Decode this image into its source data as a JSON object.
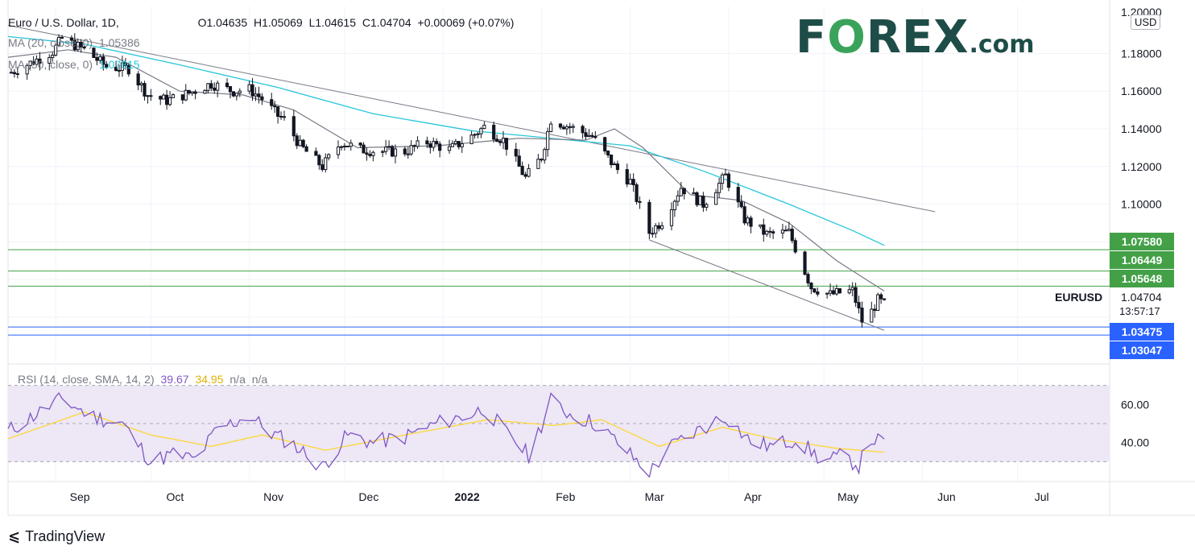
{
  "header": {
    "symbol": "Euro / U.S. Dollar, 1D,",
    "open": "O1.04635",
    "high": "H1.05069",
    "low": "L1.04615",
    "close": "C1.04704",
    "change": "+0.00069 (+0.07%)",
    "ma20_label": "MA (20, close, 0)",
    "ma20_value": "1.05386",
    "ma50_label": "MA (50, close, 0)",
    "ma50_value": "1.07815",
    "rsi_label": "RSI (14, close, SMA, 14, 2)",
    "rsi_value": "39.67",
    "rsi_sma_value": "34.95",
    "rsi_na1": "n/a",
    "rsi_na2": "n/a"
  },
  "logo": {
    "text_pre": "F",
    "text_o": "O",
    "text_post": "REX",
    "suffix": ".com"
  },
  "currency_button": "USD",
  "last_price": {
    "symbol": "EURUSD",
    "price": "1.04704",
    "countdown": "13:57:17"
  },
  "levels": [
    {
      "label": "1.07580",
      "value": 1.0758,
      "color": "#43a047"
    },
    {
      "label": "1.06449",
      "value": 1.06449,
      "color": "#43a047"
    },
    {
      "label": "1.05648",
      "value": 1.05648,
      "color": "#43a047"
    },
    {
      "label": "1.03475",
      "value": 1.03475,
      "color": "#2962ff"
    },
    {
      "label": "1.03047",
      "value": 1.03047,
      "color": "#2962ff"
    }
  ],
  "brand": {
    "name": "TradingView"
  },
  "colors": {
    "ma20": "#787b86",
    "ma50": "#26c6da",
    "rsi": "#7e57c2",
    "rsi_sma": "#fdd835",
    "candle": "#131722",
    "trend": "#787b86",
    "rsi_band": "#ede7f6"
  },
  "chart_data": {
    "type": "candlestick",
    "price_axis": {
      "ticks": [
        1.18,
        1.16,
        1.14,
        1.12,
        1.1,
        1.08,
        1.06,
        1.04
      ],
      "tick_labels": [
        "1.18000",
        "1.16000",
        "1.14000",
        "1.12000",
        "1.10000",
        "",
        "",
        ""
      ],
      "top_partial_label": "1.20000",
      "range": [
        1.016,
        1.205
      ]
    },
    "time_axis": {
      "labels": [
        "Sep",
        "Oct",
        "Nov",
        "Dec",
        "2022",
        "Feb",
        "Mar",
        "Apr",
        "May",
        "Jun",
        "Jul"
      ],
      "dates": [
        "2021-09-01",
        "2021-10-01",
        "2021-11-01",
        "2021-12-01",
        "2022-01-01",
        "2022-02-01",
        "2022-03-01",
        "2022-04-01",
        "2022-05-01",
        "2022-06-01",
        "2022-07-01"
      ],
      "range": [
        "2021-08-17",
        "2022-07-30"
      ]
    },
    "close_path": [
      [
        "2021-08-18",
        1.17
      ],
      [
        "2021-08-24",
        1.175
      ],
      [
        "2021-08-31",
        1.181
      ],
      [
        "2021-09-03",
        1.188
      ],
      [
        "2021-09-10",
        1.182
      ],
      [
        "2021-09-17",
        1.173
      ],
      [
        "2021-09-24",
        1.172
      ],
      [
        "2021-09-30",
        1.158
      ],
      [
        "2021-10-06",
        1.155
      ],
      [
        "2021-10-13",
        1.159
      ],
      [
        "2021-10-20",
        1.164
      ],
      [
        "2021-10-27",
        1.16
      ],
      [
        "2021-11-01",
        1.161
      ],
      [
        "2021-11-05",
        1.156
      ],
      [
        "2021-11-10",
        1.147
      ],
      [
        "2021-11-12",
        1.145
      ],
      [
        "2021-11-17",
        1.131
      ],
      [
        "2021-11-24",
        1.12
      ],
      [
        "2021-11-30",
        1.133
      ],
      [
        "2021-12-06",
        1.129
      ],
      [
        "2021-12-13",
        1.128
      ],
      [
        "2021-12-20",
        1.128
      ],
      [
        "2021-12-27",
        1.133
      ],
      [
        "2022-01-03",
        1.129
      ],
      [
        "2022-01-10",
        1.136
      ],
      [
        "2022-01-14",
        1.141
      ],
      [
        "2022-01-20",
        1.134
      ],
      [
        "2022-01-27",
        1.114
      ],
      [
        "2022-02-01",
        1.125
      ],
      [
        "2022-02-04",
        1.145
      ],
      [
        "2022-02-10",
        1.141
      ],
      [
        "2022-02-17",
        1.136
      ],
      [
        "2022-02-24",
        1.12
      ],
      [
        "2022-03-01",
        1.112
      ],
      [
        "2022-03-07",
        1.085
      ],
      [
        "2022-03-11",
        1.091
      ],
      [
        "2022-03-17",
        1.109
      ],
      [
        "2022-03-24",
        1.1
      ],
      [
        "2022-03-31",
        1.115
      ],
      [
        "2022-04-06",
        1.092
      ],
      [
        "2022-04-13",
        1.084
      ],
      [
        "2022-04-20",
        1.085
      ],
      [
        "2022-04-27",
        1.056
      ],
      [
        "2022-05-03",
        1.052
      ],
      [
        "2022-05-06",
        1.053
      ],
      [
        "2022-05-10",
        1.054
      ],
      [
        "2022-05-13",
        1.038
      ],
      [
        "2022-05-16",
        1.043
      ],
      [
        "2022-05-18",
        1.049
      ],
      [
        "2022-05-20",
        1.047
      ]
    ],
    "ma20_path": [
      [
        "2021-08-17",
        1.178
      ],
      [
        "2021-09-05",
        1.182
      ],
      [
        "2021-09-20",
        1.178
      ],
      [
        "2021-10-10",
        1.16
      ],
      [
        "2021-10-30",
        1.158
      ],
      [
        "2021-11-15",
        1.15
      ],
      [
        "2021-12-05",
        1.13
      ],
      [
        "2021-12-30",
        1.131
      ],
      [
        "2022-01-25",
        1.135
      ],
      [
        "2022-02-15",
        1.134
      ],
      [
        "2022-02-24",
        1.14
      ],
      [
        "2022-03-05",
        1.13
      ],
      [
        "2022-03-20",
        1.105
      ],
      [
        "2022-04-05",
        1.102
      ],
      [
        "2022-04-20",
        1.09
      ],
      [
        "2022-05-05",
        1.07
      ],
      [
        "2022-05-20",
        1.05386
      ]
    ],
    "ma50_path": [
      [
        "2021-08-17",
        1.189
      ],
      [
        "2021-09-10",
        1.185
      ],
      [
        "2021-10-10",
        1.174
      ],
      [
        "2021-11-10",
        1.162
      ],
      [
        "2021-12-10",
        1.148
      ],
      [
        "2022-01-10",
        1.139
      ],
      [
        "2022-02-10",
        1.134
      ],
      [
        "2022-03-01",
        1.131
      ],
      [
        "2022-03-25",
        1.117
      ],
      [
        "2022-04-20",
        1.1
      ],
      [
        "2022-05-10",
        1.086
      ],
      [
        "2022-05-20",
        1.07815
      ]
    ],
    "trendlines": [
      {
        "from": [
          "2021-08-17",
          1.195
        ],
        "to": [
          "2022-06-05",
          1.096
        ]
      },
      {
        "from": [
          "2022-03-07",
          1.081
        ],
        "to": [
          "2022-05-20",
          1.033
        ]
      }
    ],
    "rsi_axis": {
      "ticks": [
        60,
        40
      ],
      "tick_labels": [
        "60.00",
        "40.00"
      ],
      "bands": [
        30,
        70
      ],
      "mid": 50,
      "range": [
        20,
        80
      ]
    },
    "rsi_path": [
      [
        "2021-08-17",
        46
      ],
      [
        "2021-09-03",
        63
      ],
      [
        "2021-09-12",
        54
      ],
      [
        "2021-09-22",
        50
      ],
      [
        "2021-10-01",
        30
      ],
      [
        "2021-10-08",
        34
      ],
      [
        "2021-10-15",
        31
      ],
      [
        "2021-10-22",
        47
      ],
      [
        "2021-11-01",
        54
      ],
      [
        "2021-11-08",
        45
      ],
      [
        "2021-11-15",
        39
      ],
      [
        "2021-11-24",
        27
      ],
      [
        "2021-12-02",
        44
      ],
      [
        "2021-12-10",
        40
      ],
      [
        "2021-12-20",
        43
      ],
      [
        "2021-12-30",
        50
      ],
      [
        "2022-01-10",
        55
      ],
      [
        "2022-01-14",
        58
      ],
      [
        "2022-01-20",
        47
      ],
      [
        "2022-01-28",
        33
      ],
      [
        "2022-02-04",
        62
      ],
      [
        "2022-02-10",
        55
      ],
      [
        "2022-02-18",
        50
      ],
      [
        "2022-02-25",
        40
      ],
      [
        "2022-03-07",
        24
      ],
      [
        "2022-03-14",
        38
      ],
      [
        "2022-03-22",
        46
      ],
      [
        "2022-03-31",
        54
      ],
      [
        "2022-04-08",
        40
      ],
      [
        "2022-04-15",
        38
      ],
      [
        "2022-04-22",
        42
      ],
      [
        "2022-05-01",
        30
      ],
      [
        "2022-05-07",
        33
      ],
      [
        "2022-05-12",
        28
      ],
      [
        "2022-05-16",
        42
      ],
      [
        "2022-05-20",
        39.67
      ]
    ],
    "rsi_sma_path": [
      [
        "2021-08-17",
        42
      ],
      [
        "2021-09-10",
        56
      ],
      [
        "2021-10-01",
        44
      ],
      [
        "2021-10-20",
        38
      ],
      [
        "2021-11-05",
        44
      ],
      [
        "2021-11-25",
        36
      ],
      [
        "2021-12-20",
        44
      ],
      [
        "2022-01-15",
        52
      ],
      [
        "2022-02-05",
        49
      ],
      [
        "2022-02-20",
        52
      ],
      [
        "2022-03-10",
        38
      ],
      [
        "2022-03-30",
        48
      ],
      [
        "2022-04-15",
        42
      ],
      [
        "2022-05-05",
        37
      ],
      [
        "2022-05-20",
        34.95
      ]
    ]
  }
}
